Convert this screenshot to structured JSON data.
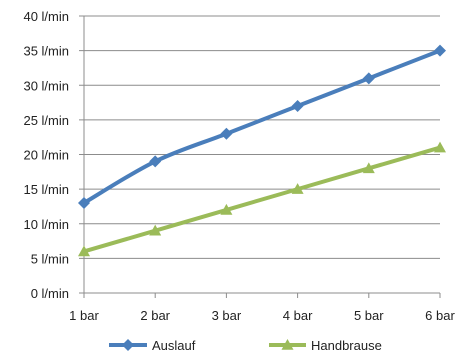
{
  "chart_data": {
    "type": "line",
    "categories": [
      "1 bar",
      "2 bar",
      "3 bar",
      "4 bar",
      "5 bar",
      "6 bar"
    ],
    "y_ticks": [
      "0 l/min",
      "5 l/min",
      "10 l/min",
      "15 l/min",
      "20 l/min",
      "25 l/min",
      "30 l/min",
      "35 l/min",
      "40 l/min"
    ],
    "ylim": [
      0,
      40
    ],
    "grid": "horizontal",
    "legend_position": "bottom",
    "series": [
      {
        "name": "Auslauf",
        "values": [
          13,
          19,
          23,
          27,
          31,
          35
        ],
        "color": "#4a7ebb",
        "marker": "diamond"
      },
      {
        "name": "Handbrause",
        "values": [
          6,
          9,
          12,
          15,
          18,
          21
        ],
        "color": "#9bbb59",
        "marker": "triangle"
      }
    ]
  }
}
